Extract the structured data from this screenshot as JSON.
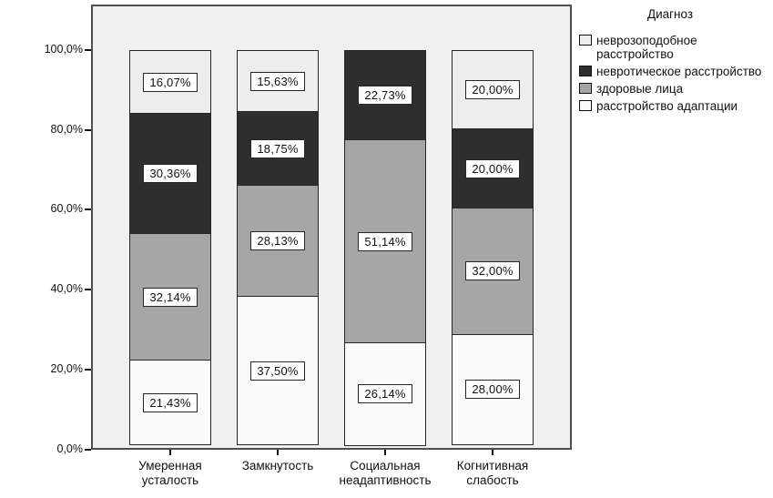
{
  "chart_data": {
    "type": "bar",
    "subtype": "stacked-100-percent",
    "title": "",
    "xlabel": "",
    "ylabel": "",
    "ylim": [
      0,
      100
    ],
    "grid": false,
    "plot_background": "#f0f0f0",
    "categories": [
      {
        "label": "Умеренная усталость",
        "lines": [
          "Умеренная",
          "усталость"
        ]
      },
      {
        "label": "Замкнутость",
        "lines": [
          "Замкнутость"
        ]
      },
      {
        "label": "Социальная неадаптивность",
        "lines": [
          "Социальная",
          "неадаптивность"
        ]
      },
      {
        "label": "Когнитивная слабость",
        "lines": [
          "Когнитивная",
          "слабость"
        ]
      }
    ],
    "series": [
      {
        "name": "неврозоподобное расстройство",
        "color": "#ededed",
        "values": [
          16.07,
          15.63,
          0,
          20.0
        ],
        "labels": [
          "16,07%",
          "15,63%",
          "",
          "20,00%"
        ]
      },
      {
        "name": "невротическое расстройство",
        "color": "#2e2e2e",
        "values": [
          30.36,
          18.75,
          22.73,
          20.0
        ],
        "labels": [
          "30,36%",
          "18,75%",
          "22,73%",
          "20,00%"
        ]
      },
      {
        "name": "здоровые лица",
        "color": "#a6a6a6",
        "values": [
          32.14,
          28.13,
          51.14,
          32.0
        ],
        "labels": [
          "32,14%",
          "28,13%",
          "51,14%",
          "32,00%"
        ]
      },
      {
        "name": "расстройство адаптации",
        "color": "#fafafa",
        "values": [
          21.43,
          37.5,
          26.14,
          28.0
        ],
        "labels": [
          "21,43%",
          "37,50%",
          "26,14%",
          "28,00%"
        ]
      }
    ],
    "stack_order_note": "series listed top-to-bottom as drawn in each bar",
    "y_ticks": [
      {
        "value": 0,
        "label": "0,0%"
      },
      {
        "value": 20,
        "label": "20,0%"
      },
      {
        "value": 40,
        "label": "40,0%"
      },
      {
        "value": 60,
        "label": "60,0%"
      },
      {
        "value": 80,
        "label": "80,0%"
      },
      {
        "value": 100,
        "label": "100,0%"
      }
    ],
    "legend": {
      "title": "Диагноз",
      "position": "right"
    }
  }
}
